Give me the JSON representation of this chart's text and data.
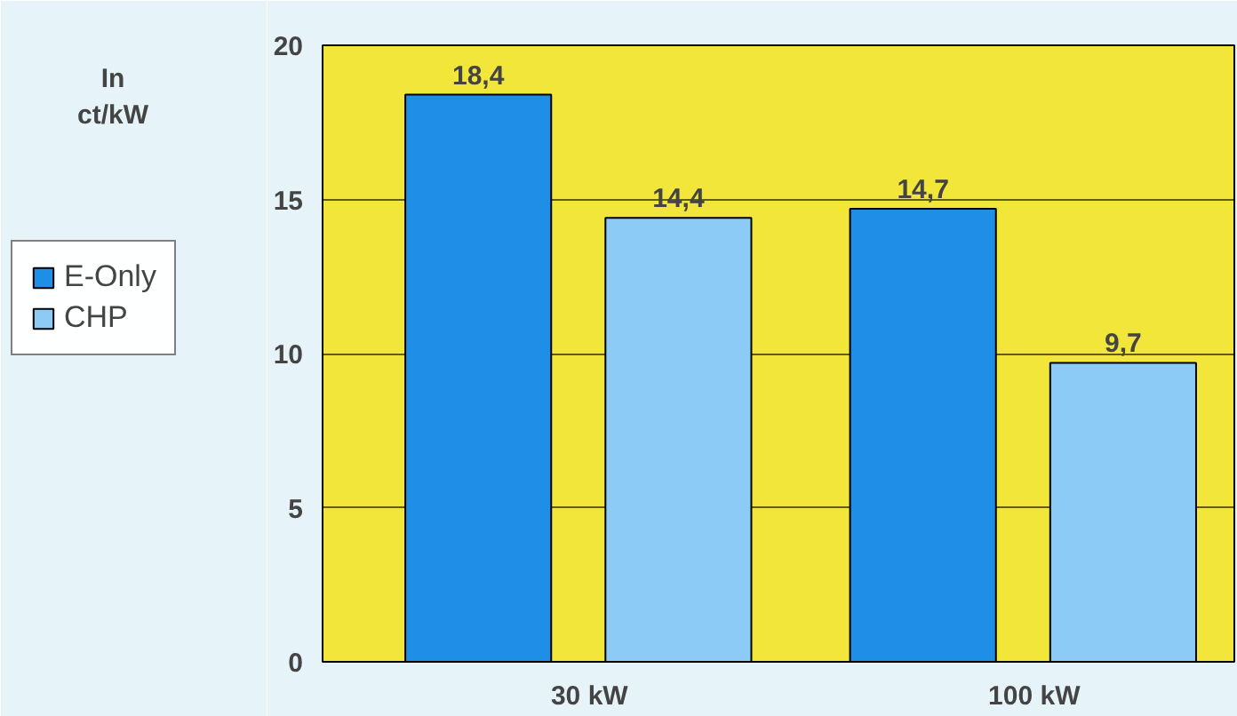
{
  "chart_data": {
    "type": "bar",
    "ylabel": "In ct/kW",
    "categories": [
      "30 kW",
      "100 kW"
    ],
    "series": [
      {
        "name": "E-Only",
        "color": "#1e8ee6",
        "values": [
          18.4,
          14.7
        ],
        "value_labels": [
          "18,4",
          "14,7"
        ]
      },
      {
        "name": "CHP",
        "color": "#8ccbf5",
        "values": [
          14.4,
          9.7
        ],
        "value_labels": [
          "14,4",
          "9,7"
        ]
      }
    ],
    "ylim": [
      0,
      20
    ],
    "yticks": [
      0,
      5,
      10,
      15,
      20
    ],
    "grid": "y",
    "legend": "left"
  }
}
